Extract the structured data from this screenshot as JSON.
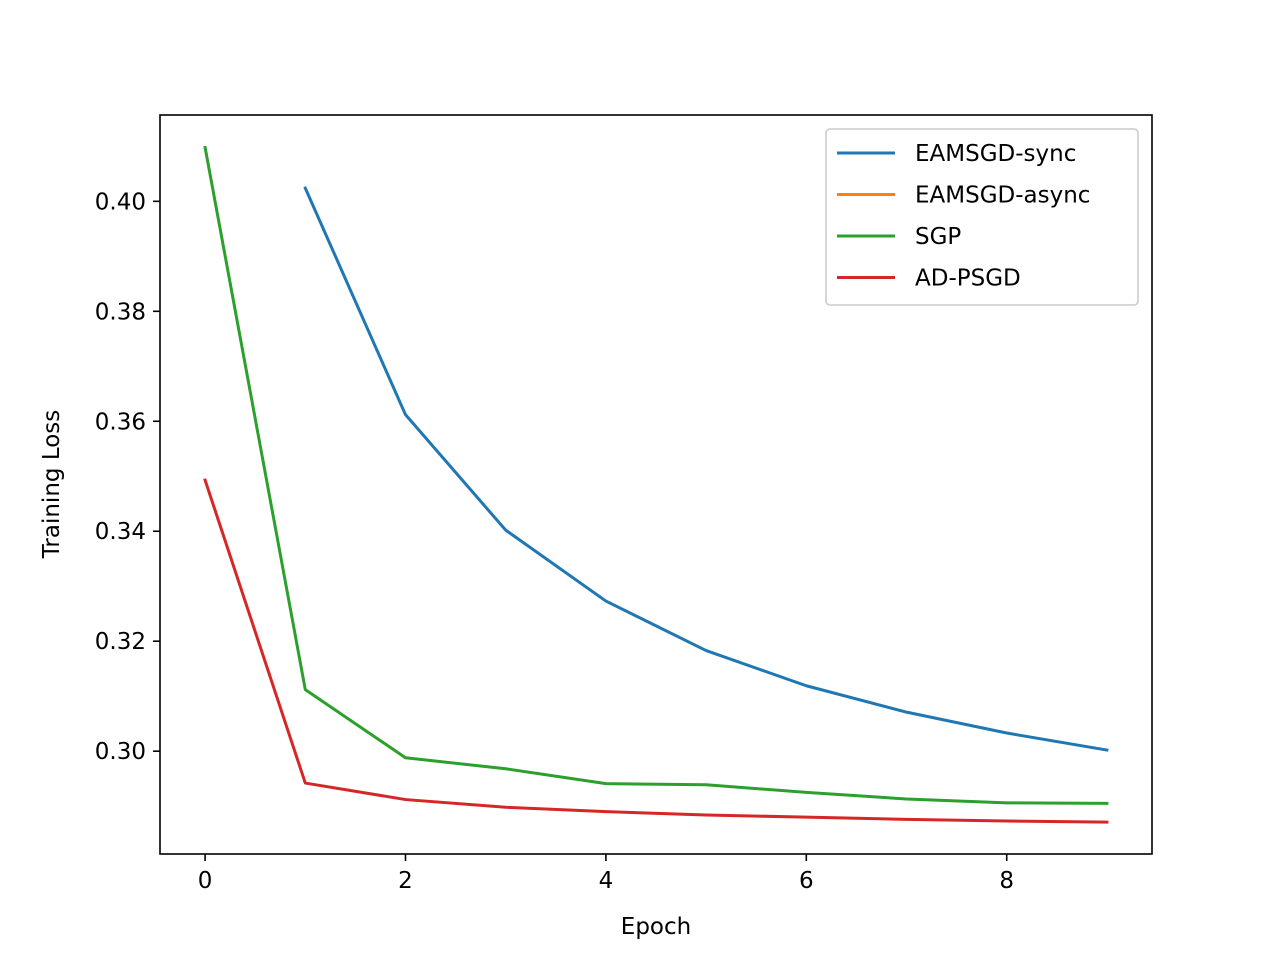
{
  "chart_data": {
    "type": "line",
    "title": "",
    "xlabel": "Epoch",
    "ylabel": "Training Loss",
    "xlim": [
      -0.45,
      9.45
    ],
    "ylim": [
      0.2813,
      0.4157
    ],
    "xticks": [
      0,
      2,
      4,
      6,
      8
    ],
    "yticks": [
      0.3,
      0.32,
      0.34,
      0.36,
      0.38,
      0.4
    ],
    "xtick_labels": [
      "0",
      "2",
      "4",
      "6",
      "8"
    ],
    "ytick_labels": [
      "0.30",
      "0.32",
      "0.34",
      "0.36",
      "0.38",
      "0.40"
    ],
    "grid": false,
    "legend_position": "top-right",
    "series": [
      {
        "name": "EAMSGD-sync",
        "color": "#1f77b4",
        "x": [
          1,
          2,
          3,
          4,
          5,
          6,
          7,
          8,
          9
        ],
        "y": [
          0.4024,
          0.3612,
          0.3402,
          0.3273,
          0.3183,
          0.3119,
          0.3071,
          0.3033,
          0.3002
        ]
      },
      {
        "name": "EAMSGD-async",
        "color": "#ff7f0e",
        "x": [],
        "y": []
      },
      {
        "name": "SGP",
        "color": "#2ca02c",
        "x": [
          0,
          1,
          2,
          3,
          4,
          5,
          6,
          7,
          8,
          9
        ],
        "y": [
          0.4098,
          0.3112,
          0.2988,
          0.2968,
          0.2941,
          0.2939,
          0.2925,
          0.2913,
          0.2906,
          0.2905
        ]
      },
      {
        "name": "AD-PSGD",
        "color": "#d62728",
        "x": [
          0,
          1,
          2,
          3,
          4,
          5,
          6,
          7,
          8,
          9
        ],
        "y": [
          0.3493,
          0.2942,
          0.2912,
          0.2898,
          0.289,
          0.2884,
          0.288,
          0.2876,
          0.2873,
          0.2871
        ]
      }
    ]
  }
}
